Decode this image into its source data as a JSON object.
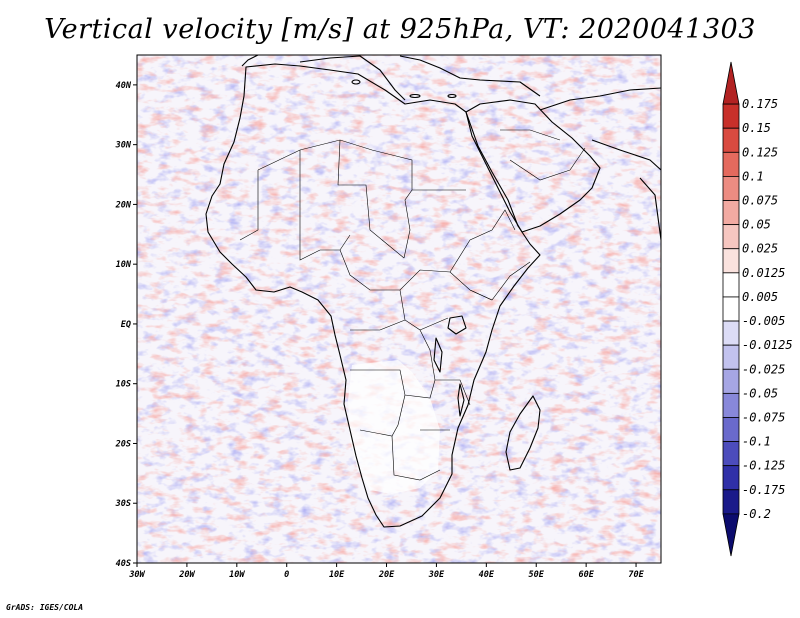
{
  "title": "Vertical velocity [m/s] at 925hPa, VT: 2020041303",
  "credit": "GrADS: IGES/COLA",
  "map": {
    "lon_range": [
      -30,
      75
    ],
    "lat_range": [
      -40,
      45
    ],
    "lon_ticks": [
      {
        "value": -30,
        "label": "30W"
      },
      {
        "value": -20,
        "label": "20W"
      },
      {
        "value": -10,
        "label": "10W"
      },
      {
        "value": 0,
        "label": "0"
      },
      {
        "value": 10,
        "label": "10E"
      },
      {
        "value": 20,
        "label": "20E"
      },
      {
        "value": 30,
        "label": "30E"
      },
      {
        "value": 40,
        "label": "40E"
      },
      {
        "value": 50,
        "label": "50E"
      },
      {
        "value": 60,
        "label": "60E"
      },
      {
        "value": 70,
        "label": "70E"
      }
    ],
    "lat_ticks": [
      {
        "value": 40,
        "label": "40N"
      },
      {
        "value": 30,
        "label": "30N"
      },
      {
        "value": 20,
        "label": "20N"
      },
      {
        "value": 10,
        "label": "10N"
      },
      {
        "value": 0,
        "label": "EQ"
      },
      {
        "value": -10,
        "label": "10S"
      },
      {
        "value": -20,
        "label": "20S"
      },
      {
        "value": -30,
        "label": "30S"
      },
      {
        "value": -40,
        "label": "40S"
      }
    ]
  },
  "colorbar": {
    "levels": [
      "0.175",
      "0.15",
      "0.125",
      "0.1",
      "0.075",
      "0.05",
      "0.025",
      "0.0125",
      "0.005",
      "-0.005",
      "-0.0125",
      "-0.025",
      "-0.05",
      "-0.075",
      "-0.1",
      "-0.125",
      "-0.175",
      "-0.2"
    ],
    "colors": [
      "#b22222",
      "#c8302a",
      "#d94a40",
      "#e46a5e",
      "#ec8c82",
      "#f2aaa2",
      "#f6c6c0",
      "#fae2de",
      "#ffffff",
      "#ffffff",
      "#dcdcf6",
      "#c2c2ee",
      "#a6a6e4",
      "#8888da",
      "#6a6acc",
      "#4c4cbc",
      "#3030a8",
      "#1a1a8a",
      "#0c0c6e"
    ]
  },
  "colors": {
    "land_outline": "#000000",
    "background": "#ffffff"
  }
}
